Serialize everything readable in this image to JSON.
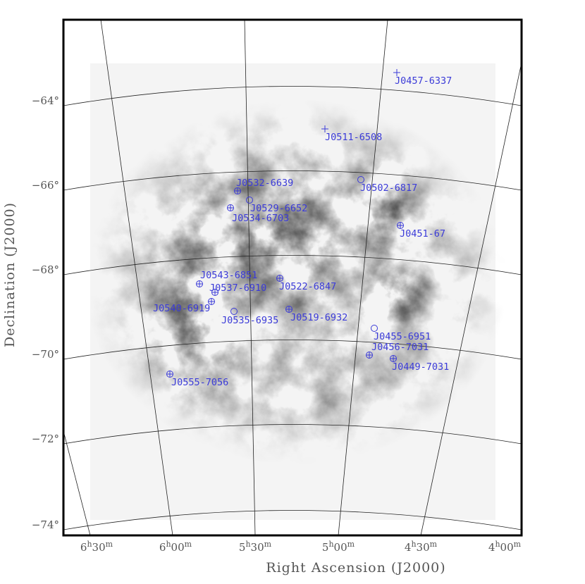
{
  "x_axis": {
    "label": "Right Ascension (J2000)",
    "ticks": [
      [
        "6",
        "h",
        "30",
        "m"
      ],
      [
        "6",
        "h",
        "00",
        "m"
      ],
      [
        "5",
        "h",
        "30",
        "m"
      ],
      [
        "5",
        "h",
        "00",
        "m"
      ],
      [
        "4",
        "h",
        "30",
        "m"
      ],
      [
        "4",
        "h",
        "00",
        "m"
      ]
    ]
  },
  "y_axis": {
    "label": "Declination (J2000)",
    "ticks": [
      "−64°",
      "−66°",
      "−68°",
      "−70°",
      "−72°",
      "−74°"
    ]
  },
  "sources": [
    {
      "name": "J0457-6337",
      "marker": "plus"
    },
    {
      "name": "J0511-6508",
      "marker": "plus"
    },
    {
      "name": "J0532-6639",
      "marker": "circle-plus"
    },
    {
      "name": "J0502-6817",
      "marker": "circle"
    },
    {
      "name": "J0529-6652",
      "marker": "circle"
    },
    {
      "name": "J0534-6703",
      "marker": "circle-plus"
    },
    {
      "name": "J0451-67",
      "marker": "circle-plus"
    },
    {
      "name": "J0543-6851",
      "marker": "circle-plus"
    },
    {
      "name": "J0537-6910",
      "marker": "circle-plus"
    },
    {
      "name": "J0522-6847",
      "marker": "circle-plus"
    },
    {
      "name": "J0540-6919",
      "marker": "circle-plus"
    },
    {
      "name": "J0535-6935",
      "marker": "circle"
    },
    {
      "name": "J0519-6932",
      "marker": "circle-plus"
    },
    {
      "name": "J0455-6951",
      "marker": "circle"
    },
    {
      "name": "J0456-7031",
      "marker": "circle-plus"
    },
    {
      "name": "J0449-7031",
      "marker": "circle-plus"
    },
    {
      "name": "J0555-7056",
      "marker": "circle-plus"
    }
  ]
}
